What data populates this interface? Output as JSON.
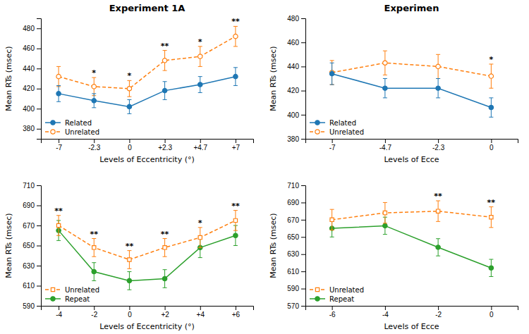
{
  "chart_data": [
    {
      "type": "line",
      "title": "Experiment 1A",
      "categories": [
        "-7",
        "-2.3",
        "0",
        "+2.3",
        "+4.7",
        "+7"
      ],
      "series": [
        {
          "name": "Related",
          "values": [
            415,
            408,
            402,
            418,
            424,
            432
          ],
          "errors": [
            8,
            7,
            7,
            9,
            8,
            9
          ],
          "marker": "circle",
          "line_style": "solid"
        },
        {
          "name": "Unrelated",
          "values": [
            432,
            422,
            420,
            448,
            452,
            472
          ],
          "errors": [
            10,
            9,
            8,
            10,
            10,
            10
          ],
          "marker": "open-circle",
          "line_style": "dashed",
          "annotations": [
            null,
            "*",
            "*",
            "**",
            "*",
            "**"
          ]
        }
      ],
      "xlabel": "Levels of Eccentricity (°)",
      "ylabel": "Mean RTs (msec)",
      "ylim": [
        370,
        490
      ],
      "yticks": [
        380,
        400,
        420,
        440,
        460,
        480
      ],
      "legend": "lower left",
      "grid": false
    },
    {
      "type": "line",
      "title": "Experimen",
      "categories": [
        "-7",
        "-4.7",
        "-2.3",
        "0"
      ],
      "series": [
        {
          "name": "Related",
          "values": [
            434,
            422,
            422,
            406
          ],
          "errors": [
            9,
            8,
            8,
            8
          ],
          "marker": "circle",
          "line_style": "solid"
        },
        {
          "name": "Unrelated",
          "values": [
            435,
            443,
            440,
            432
          ],
          "errors": [
            10,
            10,
            10,
            10
          ],
          "marker": "open-circle",
          "line_style": "dashed",
          "annotations": [
            null,
            null,
            null,
            "*"
          ]
        }
      ],
      "xlabel": "Levels of Ecce",
      "ylabel": "Mean RTs (msec)",
      "ylim": [
        380,
        480
      ],
      "yticks": [
        380,
        400,
        420,
        440,
        460,
        480
      ],
      "legend": "lower left",
      "grid": false
    },
    {
      "type": "line",
      "categories": [
        "-4",
        "-2",
        "0",
        "+2",
        "+4",
        "+6"
      ],
      "series": [
        {
          "name": "Unrelated",
          "values": [
            670,
            648,
            636,
            648,
            658,
            675
          ],
          "errors": [
            10,
            9,
            9,
            9,
            10,
            10
          ],
          "marker": "open-square",
          "line_style": "dashed",
          "annotations": [
            "**",
            "**",
            "**",
            "**",
            "*",
            "**"
          ]
        },
        {
          "name": "Repeat",
          "values": [
            665,
            624,
            615,
            617,
            648,
            660
          ],
          "errors": [
            10,
            9,
            9,
            9,
            10,
            10
          ],
          "marker": "circle",
          "line_style": "solid"
        }
      ],
      "xlabel": "Levels of Eccentricity (°)",
      "ylabel": "Mean RTs (msec)",
      "ylim": [
        590,
        710
      ],
      "yticks": [
        590,
        610,
        630,
        650,
        670,
        690,
        710
      ],
      "legend": "lower left",
      "grid": false
    },
    {
      "type": "line",
      "categories": [
        "-6",
        "-4",
        "-2",
        "0"
      ],
      "series": [
        {
          "name": "Unrelated",
          "values": [
            670,
            678,
            680,
            673
          ],
          "errors": [
            12,
            12,
            12,
            12
          ],
          "marker": "open-square",
          "line_style": "dashed",
          "annotations": [
            null,
            null,
            "**",
            "**"
          ]
        },
        {
          "name": "Repeat",
          "values": [
            660,
            663,
            638,
            614
          ],
          "errors": [
            10,
            10,
            10,
            10
          ],
          "marker": "circle",
          "line_style": "solid"
        }
      ],
      "xlabel": "Levels of Ecce",
      "ylabel": "Mean RTs (msec)",
      "ylim": [
        570,
        710
      ],
      "yticks": [
        570,
        590,
        610,
        630,
        650,
        670,
        690,
        710
      ],
      "legend": "lower left",
      "grid": false
    }
  ]
}
